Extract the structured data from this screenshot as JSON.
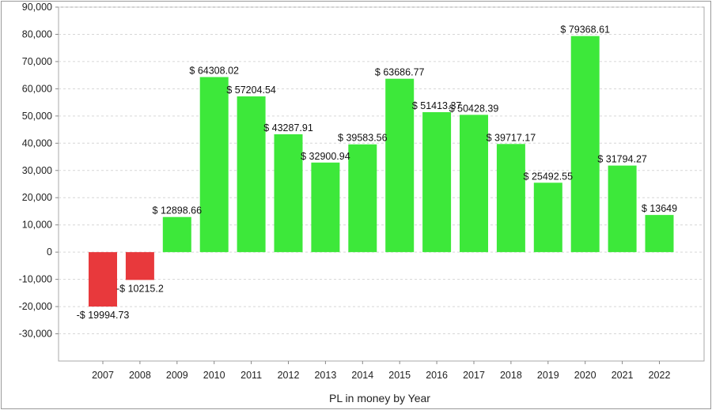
{
  "chart_data": {
    "type": "bar",
    "title": "",
    "xlabel": "PL in money by Year",
    "ylabel": "",
    "ylim": [
      -40000,
      90000
    ],
    "yticks": [
      -30000,
      -20000,
      -10000,
      0,
      10000,
      20000,
      30000,
      40000,
      50000,
      60000,
      70000,
      80000,
      90000
    ],
    "ytick_labels": [
      "-30,000",
      "-20,000",
      "-10,000",
      "0",
      "10,000",
      "20,000",
      "30,000",
      "40,000",
      "50,000",
      "60,000",
      "70,000",
      "80,000",
      "90,000"
    ],
    "grid": true,
    "categories": [
      "2007",
      "2008",
      "2009",
      "2010",
      "2011",
      "2012",
      "2013",
      "2014",
      "2015",
      "2016",
      "2017",
      "2018",
      "2019",
      "2020",
      "2021",
      "2022"
    ],
    "values": [
      -19994.73,
      -10215.2,
      12898.66,
      64308.02,
      57204.54,
      43287.91,
      32900.94,
      39583.56,
      63686.77,
      51413.37,
      50428.39,
      39717.17,
      25492.55,
      79368.61,
      31794.27,
      13649
    ],
    "data_labels": [
      "-$ 19994.73",
      "-$ 10215.2",
      "$ 12898.66",
      "$ 64308.02",
      "$ 57204.54",
      "$ 43287.91",
      "$ 32900.94",
      "$ 39583.56",
      "$ 63686.77",
      "$ 51413.37",
      "$ 50428.39",
      "$ 39717.17",
      "$ 25492.55",
      "$ 79368.61",
      "$ 31794.27",
      "$ 13649"
    ],
    "colors": {
      "positive": "#3de83a",
      "negative": "#e8393c"
    }
  }
}
